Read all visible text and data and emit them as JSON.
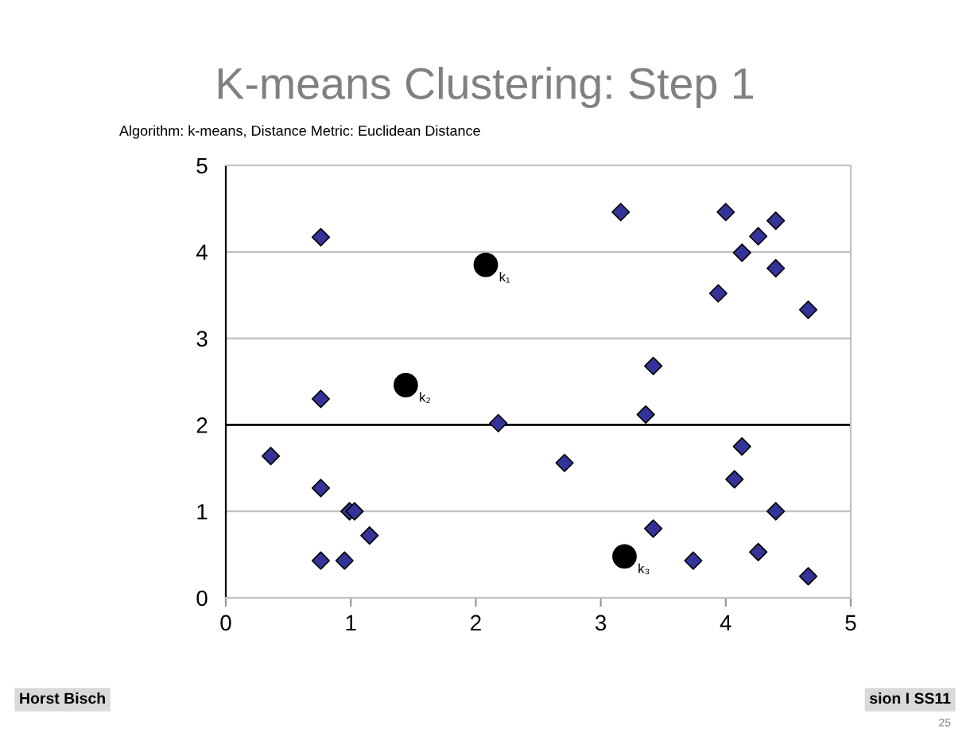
{
  "chart_data": {
    "type": "scatter",
    "title": "K-means Clustering: Step 1",
    "subtitle": "Algorithm: k-means, Distance Metric: Euclidean Distance",
    "series": [
      {
        "color": "#333399",
        "marker": "diamond",
        "x": [
          0.36,
          0.76,
          0.76,
          0.76,
          0.99,
          1.03,
          1.15,
          0.76,
          0.95,
          2.18,
          3.16,
          4.0,
          4.4,
          4.26,
          4.13,
          4.4,
          3.94,
          4.66,
          3.42,
          3.36,
          4.13,
          2.71,
          4.07,
          4.4,
          3.42,
          4.26,
          3.74,
          4.66
        ],
        "values": [
          1.64,
          4.17,
          2.3,
          1.27,
          1.0,
          1.0,
          0.72,
          0.43,
          0.43,
          2.02,
          4.46,
          4.46,
          4.36,
          4.18,
          3.99,
          3.81,
          3.52,
          3.33,
          2.68,
          2.12,
          1.75,
          1.56,
          1.37,
          1.0,
          0.8,
          0.53,
          0.43,
          0.25
        ]
      },
      {
        "color": "#000000",
        "marker": "circle",
        "x": [
          2.08,
          1.44,
          3.19
        ],
        "values": [
          3.85,
          2.46,
          0.48
        ]
      }
    ],
    "xlim": [
      0,
      5
    ],
    "ylim": [
      0,
      5
    ],
    "xticks": [
      0,
      1,
      2,
      3,
      4,
      5
    ],
    "yticks": [
      0,
      1,
      2,
      3,
      4,
      5
    ],
    "grid": "y",
    "ref_lines": [
      {
        "axis": "y",
        "value": 2,
        "color": "#000000"
      }
    ],
    "annotations": [
      {
        "text": "k₁",
        "x": 2.08,
        "y": 3.85
      },
      {
        "text": "k₂",
        "x": 1.44,
        "y": 2.46
      },
      {
        "text": "k₃",
        "x": 3.19,
        "y": 0.48
      },
      "Horst Bisch",
      "sion I SS11",
      "25"
    ]
  }
}
